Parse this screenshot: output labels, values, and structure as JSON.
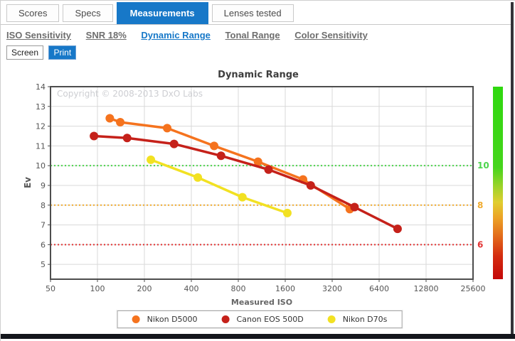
{
  "tabs": {
    "items": [
      "Scores",
      "Specs",
      "Measurements",
      "Lenses tested"
    ],
    "active": "Measurements"
  },
  "subnav": {
    "items": [
      "ISO Sensitivity",
      "SNR 18%",
      "Dynamic Range",
      "Tonal Range",
      "Color Sensitivity"
    ],
    "active": "Dynamic Range"
  },
  "view_toggle": {
    "options": [
      "Screen",
      "Print"
    ],
    "active": "Print"
  },
  "colors": {
    "accent": "#1778c8",
    "grid": "#d9d9d9",
    "plot_border": "#4d4d4d",
    "tick_text": "#555555",
    "copyright_text": "#cdced2"
  },
  "chart_data": {
    "type": "line",
    "title": "Dynamic Range",
    "copyright": "Copyright © 2008-2013 DxO Labs",
    "xlabel": "Measured ISO",
    "ylabel": "Ev",
    "x_scale": "log2",
    "xlim": [
      50,
      25600
    ],
    "ylim": [
      4.25,
      14
    ],
    "x_ticks": [
      50,
      100,
      200,
      400,
      800,
      1600,
      3200,
      6400,
      12800,
      25600
    ],
    "y_ticks": [
      5,
      6,
      7,
      8,
      9,
      10,
      11,
      12,
      13,
      14
    ],
    "grid": true,
    "legend_position": "bottom",
    "threshold_lines": [
      {
        "value": 10,
        "label": "10",
        "color": "#4cd44c"
      },
      {
        "value": 8,
        "label": "8",
        "color": "#f0ab2e"
      },
      {
        "value": 6,
        "label": "6",
        "color": "#e23434"
      }
    ],
    "series": [
      {
        "name": "Nikon D5000",
        "color": "#f5731e",
        "points": [
          [
            120,
            12.4
          ],
          [
            140,
            12.2
          ],
          [
            280,
            11.9
          ],
          [
            560,
            11.0
          ],
          [
            1070,
            10.2
          ],
          [
            2080,
            9.3
          ],
          [
            4150,
            7.8
          ]
        ]
      },
      {
        "name": "Canon EOS 500D",
        "color": "#c5211a",
        "points": [
          [
            95,
            11.5
          ],
          [
            155,
            11.4
          ],
          [
            310,
            11.1
          ],
          [
            620,
            10.5
          ],
          [
            1250,
            9.8
          ],
          [
            2330,
            9.0
          ],
          [
            4450,
            7.9
          ],
          [
            8400,
            6.8
          ]
        ]
      },
      {
        "name": "Nikon D70s",
        "color": "#f2e122",
        "points": [
          [
            220,
            10.3
          ],
          [
            440,
            9.4
          ],
          [
            850,
            8.4
          ],
          [
            1650,
            7.6
          ]
        ]
      }
    ],
    "gradient_bar": {
      "stops": [
        {
          "offset": 0.0,
          "color": "#2fd80f"
        },
        {
          "offset": 0.42,
          "color": "#46d51c"
        },
        {
          "offset": 0.52,
          "color": "#9ed32a"
        },
        {
          "offset": 0.6,
          "color": "#e0ce30"
        },
        {
          "offset": 0.68,
          "color": "#eca326"
        },
        {
          "offset": 0.78,
          "color": "#e2691b"
        },
        {
          "offset": 0.88,
          "color": "#d42c10"
        },
        {
          "offset": 1.0,
          "color": "#c40808"
        }
      ]
    }
  }
}
